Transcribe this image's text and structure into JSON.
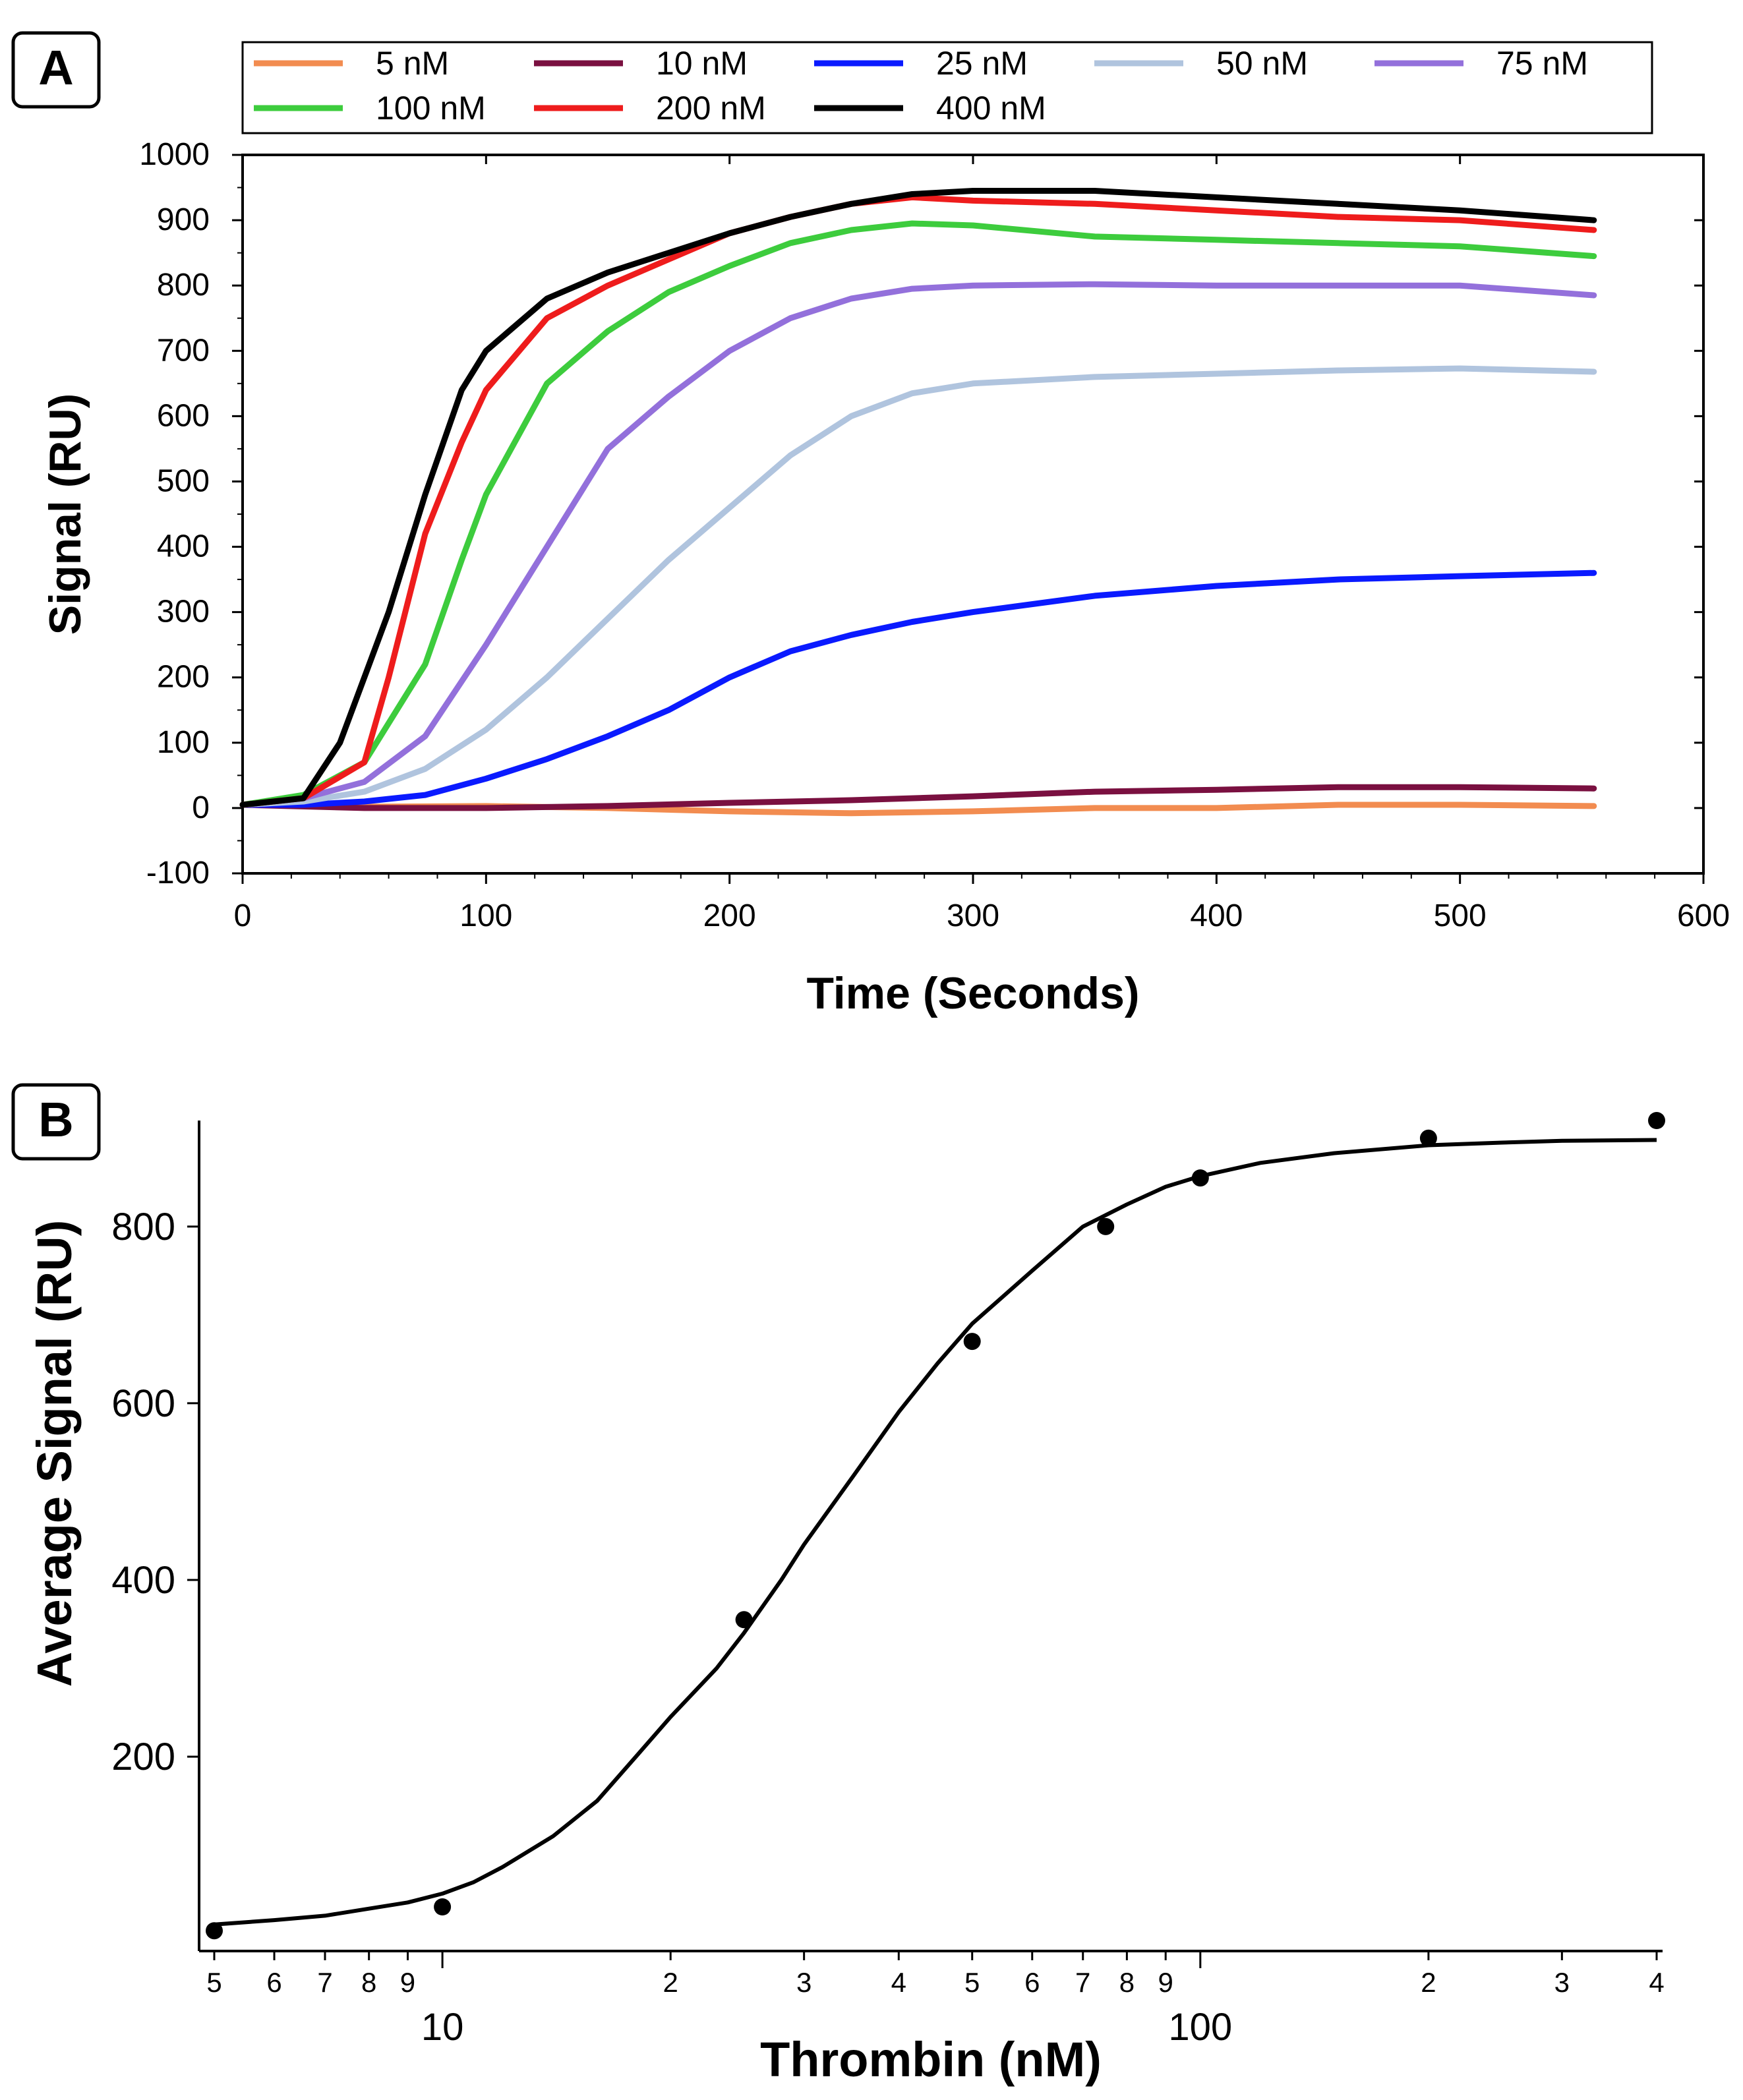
{
  "chart_data": [
    {
      "panel_label": "A",
      "type": "line",
      "xlabel": "Time (Seconds)",
      "ylabel": "Signal (RU)",
      "xlim": [
        0,
        600
      ],
      "ylim": [
        -100,
        1000
      ],
      "xticks": [
        0,
        100,
        200,
        300,
        400,
        500,
        600
      ],
      "yticks": [
        -100,
        0,
        100,
        200,
        300,
        400,
        500,
        600,
        700,
        800,
        900,
        1000
      ],
      "legend_position": "top",
      "series": [
        {
          "name": "5 nM",
          "color": "#f28c50",
          "x": [
            0,
            50,
            100,
            150,
            200,
            250,
            300,
            350,
            400,
            450,
            500,
            555
          ],
          "y": [
            5,
            2,
            3,
            0,
            -5,
            -8,
            -5,
            0,
            0,
            5,
            5,
            3
          ]
        },
        {
          "name": "10 nM",
          "color": "#7a1040",
          "x": [
            0,
            50,
            100,
            150,
            200,
            250,
            300,
            350,
            400,
            450,
            500,
            555
          ],
          "y": [
            5,
            0,
            0,
            3,
            8,
            12,
            18,
            25,
            28,
            32,
            32,
            30
          ]
        },
        {
          "name": "25 nM",
          "color": "#0a1aff",
          "x": [
            0,
            25,
            50,
            75,
            100,
            125,
            150,
            175,
            200,
            225,
            250,
            275,
            300,
            350,
            400,
            450,
            500,
            555
          ],
          "y": [
            5,
            5,
            10,
            20,
            45,
            75,
            110,
            150,
            200,
            240,
            265,
            285,
            300,
            325,
            340,
            350,
            355,
            360
          ]
        },
        {
          "name": "50 nM",
          "color": "#b0c4de",
          "x": [
            0,
            25,
            50,
            75,
            100,
            125,
            150,
            175,
            200,
            225,
            250,
            275,
            300,
            350,
            400,
            450,
            500,
            555
          ],
          "y": [
            5,
            10,
            25,
            60,
            120,
            200,
            290,
            380,
            460,
            540,
            600,
            635,
            650,
            660,
            665,
            670,
            673,
            668
          ]
        },
        {
          "name": "75 nM",
          "color": "#9370db",
          "x": [
            0,
            25,
            50,
            75,
            100,
            125,
            150,
            175,
            200,
            225,
            250,
            275,
            300,
            350,
            400,
            450,
            500,
            555
          ],
          "y": [
            5,
            15,
            40,
            110,
            250,
            400,
            550,
            630,
            700,
            750,
            780,
            795,
            800,
            802,
            800,
            800,
            800,
            785
          ]
        },
        {
          "name": "100 nM",
          "color": "#3dcc3d",
          "x": [
            0,
            25,
            50,
            75,
            90,
            100,
            125,
            150,
            175,
            200,
            225,
            250,
            275,
            300,
            350,
            400,
            450,
            500,
            555
          ],
          "y": [
            5,
            20,
            70,
            220,
            380,
            480,
            650,
            730,
            790,
            830,
            865,
            885,
            895,
            892,
            875,
            870,
            865,
            860,
            845
          ]
        },
        {
          "name": "200 nM",
          "color": "#ee1c1c",
          "x": [
            0,
            25,
            50,
            60,
            75,
            90,
            100,
            125,
            150,
            175,
            200,
            225,
            250,
            275,
            300,
            350,
            400,
            450,
            500,
            555
          ],
          "y": [
            5,
            15,
            70,
            200,
            420,
            560,
            640,
            750,
            800,
            840,
            880,
            905,
            925,
            935,
            930,
            925,
            915,
            905,
            900,
            885
          ]
        },
        {
          "name": "400 nM",
          "color": "#000000",
          "x": [
            0,
            25,
            40,
            50,
            60,
            75,
            90,
            100,
            125,
            150,
            175,
            200,
            225,
            250,
            275,
            300,
            350,
            400,
            450,
            500,
            555
          ],
          "y": [
            5,
            15,
            100,
            200,
            300,
            480,
            640,
            700,
            780,
            820,
            850,
            880,
            905,
            925,
            940,
            945,
            945,
            935,
            925,
            915,
            900
          ]
        }
      ]
    },
    {
      "panel_label": "B",
      "type": "scatter",
      "xscale": "log",
      "xlabel": "Thrombin (nM)",
      "ylabel": "Average Signal (RU)",
      "xlim": [
        5,
        400
      ],
      "ylim": [
        -20,
        920
      ],
      "yticks": [
        200,
        400,
        600,
        800
      ],
      "xtick_major": [
        {
          "value": 10,
          "label": "10"
        },
        {
          "value": 100,
          "label": "100"
        }
      ],
      "xtick_minor": [
        {
          "value": 5,
          "label": "5"
        },
        {
          "value": 6,
          "label": "6"
        },
        {
          "value": 7,
          "label": "7"
        },
        {
          "value": 8,
          "label": "8"
        },
        {
          "value": 9,
          "label": "9"
        },
        {
          "value": 20,
          "label": "2"
        },
        {
          "value": 30,
          "label": "3"
        },
        {
          "value": 40,
          "label": "4"
        },
        {
          "value": 50,
          "label": "5"
        },
        {
          "value": 60,
          "label": "6"
        },
        {
          "value": 70,
          "label": "7"
        },
        {
          "value": 80,
          "label": "8"
        },
        {
          "value": 90,
          "label": "9"
        },
        {
          "value": 200,
          "label": "2"
        },
        {
          "value": 300,
          "label": "3"
        },
        {
          "value": 400,
          "label": "4"
        }
      ],
      "points": {
        "x": [
          5,
          10,
          25,
          50,
          75,
          100,
          200,
          400
        ],
        "y": [
          3,
          30,
          355,
          670,
          800,
          855,
          900,
          920
        ]
      },
      "fit": {
        "x": [
          5,
          6,
          7,
          8,
          9,
          10,
          11,
          12,
          14,
          16,
          18,
          20,
          23,
          25,
          28,
          30,
          35,
          40,
          45,
          50,
          60,
          70,
          80,
          90,
          100,
          120,
          150,
          200,
          250,
          300,
          400
        ],
        "y": [
          10,
          15,
          20,
          28,
          35,
          45,
          58,
          75,
          110,
          150,
          200,
          245,
          300,
          340,
          400,
          440,
          520,
          590,
          645,
          690,
          750,
          800,
          825,
          845,
          857,
          872,
          883,
          892,
          895,
          897,
          898
        ]
      }
    }
  ]
}
